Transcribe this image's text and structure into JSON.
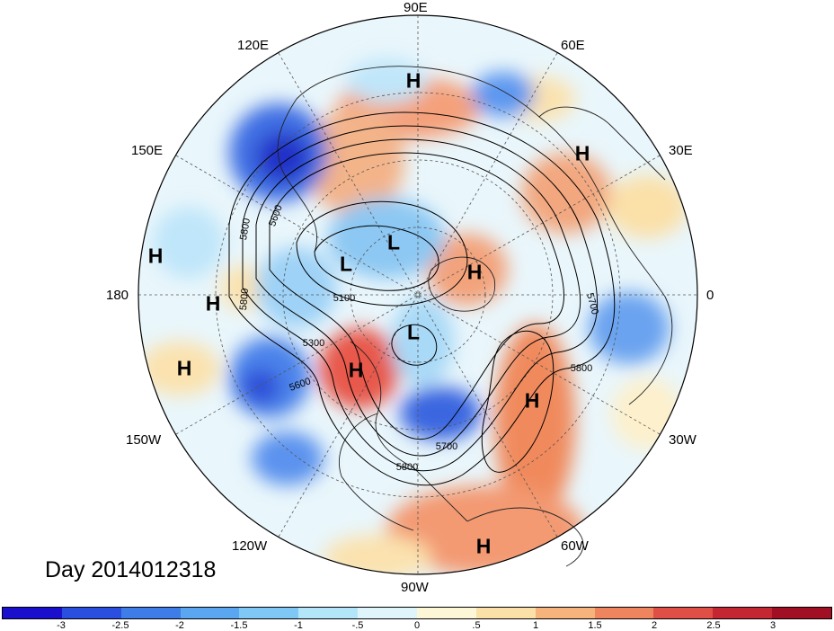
{
  "title": "Day 2014012318",
  "longitude_labels": {
    "top": "90E",
    "top_left": "120E",
    "top_right": "60E",
    "upper_left": "150E",
    "upper_right": "30E",
    "left": "180",
    "right": "0",
    "lower_left": "150W",
    "lower_right": "30W",
    "bottom_left": "120W",
    "bottom_right": "60W",
    "bottom": "90W"
  },
  "pressure_systems": [
    {
      "label": "H",
      "kind": "high",
      "region": "north-central Siberia"
    },
    {
      "label": "H",
      "kind": "high",
      "region": "western Russia"
    },
    {
      "label": "H",
      "kind": "high",
      "region": "North Pacific west"
    },
    {
      "label": "H",
      "kind": "high",
      "region": "North Pacific central"
    },
    {
      "label": "H",
      "kind": "high",
      "region": "subtropical Pacific"
    },
    {
      "label": "L",
      "kind": "low",
      "region": "Siberian Arctic"
    },
    {
      "label": "L",
      "kind": "low",
      "region": "East Siberian Sea"
    },
    {
      "label": "H",
      "kind": "high",
      "region": "Greenland Sea"
    },
    {
      "label": "L",
      "kind": "low",
      "region": "Canadian Arctic"
    },
    {
      "label": "H",
      "kind": "high",
      "region": "Alaska / Yukon"
    },
    {
      "label": "H",
      "kind": "high",
      "region": "North Atlantic"
    },
    {
      "label": "H",
      "kind": "high",
      "region": "Caribbean"
    }
  ],
  "contour_labels": [
    "5600",
    "5800",
    "5100",
    "5300",
    "5600",
    "5800",
    "5700",
    "5800",
    "5700",
    "5800"
  ],
  "colorbar": {
    "ticks": [
      "-3",
      "-2.5",
      "-2",
      "-1.5",
      "-1",
      "-.5",
      "0",
      ".5",
      "1",
      "1.5",
      "2",
      "2.5",
      "3"
    ],
    "colors": [
      "#1a0fcc",
      "#2a4fe0",
      "#3e7de8",
      "#5aa6f0",
      "#7fc8f5",
      "#b4e6fa",
      "#dff5fb",
      "#fdf7d8",
      "#fbe0a8",
      "#f6b47c",
      "#ef855e",
      "#e04f45",
      "#c42732",
      "#a10f24"
    ]
  }
}
